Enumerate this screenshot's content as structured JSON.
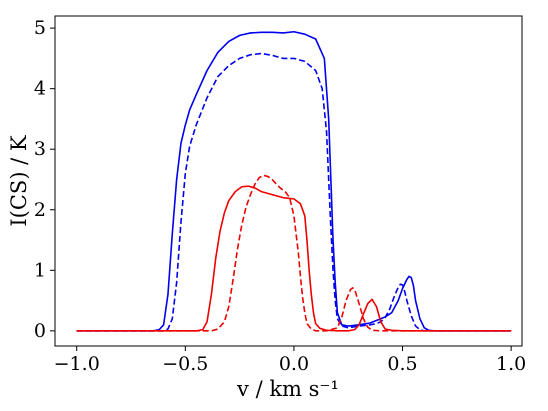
{
  "chart_data": {
    "type": "line",
    "xlabel": "v / km s⁻¹",
    "ylabel": "I(CS) / K",
    "xlim": [
      -1.1,
      1.05
    ],
    "ylim": [
      -0.25,
      5.2
    ],
    "xticks": [
      -1.0,
      -0.5,
      0.0,
      0.5,
      1.0
    ],
    "xtick_labels": [
      "−1.0",
      "−0.5",
      "0.0",
      "0.5",
      "1.0"
    ],
    "yticks": [
      0,
      1,
      2,
      3,
      4,
      5
    ],
    "ytick_labels": [
      "0",
      "1",
      "2",
      "3",
      "4",
      "5"
    ],
    "grid": false,
    "legend": "none",
    "series": [
      {
        "color": "#0000ee",
        "style": "solid",
        "x": [
          -1.0,
          -0.65,
          -0.62,
          -0.6,
          -0.58,
          -0.56,
          -0.54,
          -0.52,
          -0.5,
          -0.48,
          -0.45,
          -0.4,
          -0.35,
          -0.3,
          -0.25,
          -0.2,
          -0.15,
          -0.1,
          -0.05,
          0.0,
          0.05,
          0.1,
          0.14,
          0.16,
          0.17,
          0.18,
          0.19,
          0.2,
          0.22,
          0.25,
          0.3,
          0.35,
          0.4,
          0.42,
          0.45,
          0.48,
          0.5,
          0.52,
          0.53,
          0.54,
          0.55,
          0.56,
          0.58,
          0.6,
          0.62,
          0.65,
          0.7,
          1.0
        ],
        "y": [
          0,
          0,
          0.02,
          0.1,
          0.6,
          1.6,
          2.5,
          3.1,
          3.4,
          3.65,
          3.9,
          4.3,
          4.6,
          4.78,
          4.88,
          4.92,
          4.93,
          4.93,
          4.92,
          4.94,
          4.9,
          4.82,
          4.5,
          3.5,
          2.5,
          1.5,
          0.8,
          0.3,
          0.1,
          0.08,
          0.1,
          0.13,
          0.2,
          0.23,
          0.3,
          0.5,
          0.7,
          0.85,
          0.9,
          0.88,
          0.75,
          0.5,
          0.2,
          0.05,
          0.01,
          0,
          0,
          0
        ]
      },
      {
        "color": "#0000ee",
        "style": "dashed",
        "x": [
          -1.0,
          -0.6,
          -0.58,
          -0.56,
          -0.54,
          -0.52,
          -0.5,
          -0.48,
          -0.45,
          -0.4,
          -0.35,
          -0.3,
          -0.25,
          -0.2,
          -0.15,
          -0.1,
          -0.05,
          0.0,
          0.05,
          0.1,
          0.13,
          0.15,
          0.16,
          0.17,
          0.18,
          0.19,
          0.2,
          0.22,
          0.25,
          0.3,
          0.35,
          0.38,
          0.4,
          0.42,
          0.44,
          0.46,
          0.48,
          0.49,
          0.5,
          0.51,
          0.52,
          0.54,
          0.56,
          0.58,
          0.6,
          0.65,
          1.0
        ],
        "y": [
          0,
          0,
          0.03,
          0.2,
          0.8,
          1.8,
          2.6,
          3.05,
          3.4,
          3.85,
          4.2,
          4.38,
          4.5,
          4.56,
          4.58,
          4.55,
          4.5,
          4.5,
          4.45,
          4.3,
          4.0,
          3.3,
          2.5,
          1.7,
          1.0,
          0.5,
          0.2,
          0.08,
          0.05,
          0.08,
          0.1,
          0.12,
          0.15,
          0.22,
          0.35,
          0.55,
          0.72,
          0.77,
          0.76,
          0.65,
          0.5,
          0.25,
          0.08,
          0.02,
          0,
          0,
          0
        ]
      },
      {
        "color": "#ee0000",
        "style": "solid",
        "x": [
          -1.0,
          -0.45,
          -0.42,
          -0.4,
          -0.38,
          -0.36,
          -0.34,
          -0.32,
          -0.3,
          -0.27,
          -0.24,
          -0.21,
          -0.18,
          -0.15,
          -0.1,
          -0.05,
          0.0,
          0.03,
          0.05,
          0.06,
          0.07,
          0.08,
          0.09,
          0.1,
          0.12,
          0.15,
          0.2,
          0.25,
          0.28,
          0.3,
          0.32,
          0.34,
          0.36,
          0.38,
          0.4,
          0.42,
          0.45,
          0.5,
          1.0
        ],
        "y": [
          0,
          0,
          0.02,
          0.15,
          0.6,
          1.2,
          1.65,
          1.95,
          2.15,
          2.3,
          2.38,
          2.39,
          2.36,
          2.3,
          2.25,
          2.2,
          2.18,
          2.1,
          1.9,
          1.5,
          1.0,
          0.6,
          0.3,
          0.12,
          0.04,
          0.01,
          0,
          0,
          0.02,
          0.1,
          0.28,
          0.45,
          0.52,
          0.4,
          0.15,
          0.03,
          0.01,
          0,
          0
        ]
      },
      {
        "color": "#ee0000",
        "style": "dashed",
        "x": [
          -1.0,
          -0.38,
          -0.35,
          -0.32,
          -0.3,
          -0.28,
          -0.26,
          -0.24,
          -0.22,
          -0.2,
          -0.18,
          -0.16,
          -0.14,
          -0.12,
          -0.1,
          -0.08,
          -0.06,
          -0.04,
          -0.02,
          0.0,
          0.02,
          0.03,
          0.04,
          0.05,
          0.06,
          0.08,
          0.1,
          0.15,
          0.2,
          0.22,
          0.24,
          0.26,
          0.27,
          0.28,
          0.3,
          0.32,
          0.34,
          0.36,
          0.4,
          1.0
        ],
        "y": [
          0,
          0,
          0.03,
          0.15,
          0.4,
          0.85,
          1.35,
          1.75,
          2.05,
          2.25,
          2.42,
          2.53,
          2.57,
          2.55,
          2.5,
          2.42,
          2.35,
          2.3,
          2.2,
          1.9,
          1.3,
          0.9,
          0.55,
          0.3,
          0.12,
          0.03,
          0,
          0,
          0.05,
          0.22,
          0.5,
          0.68,
          0.71,
          0.68,
          0.45,
          0.2,
          0.06,
          0.01,
          0,
          0
        ]
      }
    ]
  }
}
